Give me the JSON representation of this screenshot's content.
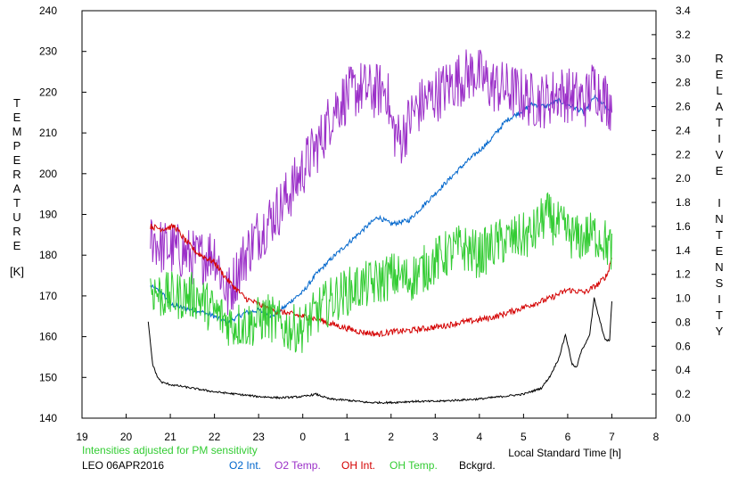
{
  "chart_data": {
    "type": "line",
    "left_axis": {
      "label": "TEMPERATURE",
      "unit": "[K]",
      "range": [
        140,
        240
      ],
      "ticks": [
        "140",
        "150",
        "160",
        "170",
        "180",
        "190",
        "200",
        "210",
        "220",
        "230",
        "240"
      ]
    },
    "right_axis": {
      "label": "RELATIVE INTENSITY",
      "range": [
        0.0,
        3.4
      ],
      "ticks": [
        "0.0",
        "0.2",
        "0.4",
        "0.6",
        "0.8",
        "1.0",
        "1.2",
        "1.4",
        "1.6",
        "1.8",
        "2.0",
        "2.2",
        "2.4",
        "2.6",
        "2.8",
        "3.0",
        "3.2",
        "3.4"
      ]
    },
    "x_axis": {
      "label": "Local Standard Time [h]",
      "range": [
        19,
        32
      ],
      "ticks": [
        "19",
        "20",
        "21",
        "22",
        "23",
        "0",
        "1",
        "2",
        "3",
        "4",
        "5",
        "6",
        "7",
        "8"
      ]
    },
    "note": "Intensities adjusted for PM sensitivity",
    "station": "LEO 06APR2016",
    "grid": false,
    "legend_position": "bottom",
    "series": [
      {
        "name": "O2 Int.",
        "color": "#0066cc",
        "axis": "right",
        "points": [
          [
            20.55,
            1.1
          ],
          [
            20.8,
            1.05
          ],
          [
            21.0,
            0.95
          ],
          [
            21.3,
            0.92
          ],
          [
            21.6,
            0.9
          ],
          [
            22.0,
            0.85
          ],
          [
            22.3,
            0.8
          ],
          [
            22.7,
            0.88
          ],
          [
            23.0,
            0.9
          ],
          [
            23.3,
            0.85
          ],
          [
            23.6,
            0.93
          ],
          [
            23.8,
            1.0
          ],
          [
            24.0,
            1.05
          ],
          [
            24.3,
            1.2
          ],
          [
            24.7,
            1.35
          ],
          [
            25.0,
            1.45
          ],
          [
            25.3,
            1.55
          ],
          [
            25.7,
            1.68
          ],
          [
            26.0,
            1.62
          ],
          [
            26.4,
            1.65
          ],
          [
            26.8,
            1.8
          ],
          [
            27.2,
            1.95
          ],
          [
            27.6,
            2.1
          ],
          [
            27.9,
            2.2
          ],
          [
            28.2,
            2.3
          ],
          [
            28.6,
            2.48
          ],
          [
            28.9,
            2.55
          ],
          [
            29.2,
            2.62
          ],
          [
            29.5,
            2.6
          ],
          [
            29.8,
            2.65
          ],
          [
            30.1,
            2.6
          ],
          [
            30.4,
            2.55
          ],
          [
            30.6,
            2.68
          ],
          [
            30.8,
            2.62
          ],
          [
            31.0,
            2.55
          ]
        ],
        "jitter": 0.02
      },
      {
        "name": "O2 Temp.",
        "color": "#9b30c8",
        "axis": "left",
        "points": [
          [
            20.55,
            185
          ],
          [
            20.8,
            182
          ],
          [
            21.2,
            181
          ],
          [
            21.6,
            179
          ],
          [
            22.0,
            181
          ],
          [
            22.3,
            170
          ],
          [
            22.6,
            178
          ],
          [
            22.9,
            184
          ],
          [
            23.2,
            188
          ],
          [
            23.5,
            192
          ],
          [
            23.8,
            197
          ],
          [
            24.1,
            203
          ],
          [
            24.4,
            208
          ],
          [
            24.7,
            216
          ],
          [
            25.0,
            219
          ],
          [
            25.3,
            221
          ],
          [
            25.6,
            220
          ],
          [
            25.9,
            221
          ],
          [
            26.0,
            212
          ],
          [
            26.2,
            208
          ],
          [
            26.5,
            215
          ],
          [
            26.8,
            218
          ],
          [
            27.1,
            220
          ],
          [
            27.5,
            223
          ],
          [
            27.9,
            225
          ],
          [
            28.2,
            222
          ],
          [
            28.5,
            221
          ],
          [
            28.8,
            220
          ],
          [
            29.2,
            218
          ],
          [
            29.5,
            218
          ],
          [
            29.8,
            220
          ],
          [
            30.1,
            219
          ],
          [
            30.4,
            218
          ],
          [
            30.6,
            222
          ],
          [
            30.8,
            219
          ],
          [
            31.0,
            217
          ]
        ],
        "jitter": 7
      },
      {
        "name": "OH Int.",
        "color": "#d40000",
        "axis": "right",
        "points": [
          [
            20.55,
            1.6
          ],
          [
            20.8,
            1.58
          ],
          [
            21.1,
            1.6
          ],
          [
            21.3,
            1.5
          ],
          [
            21.6,
            1.38
          ],
          [
            22.0,
            1.3
          ],
          [
            22.3,
            1.15
          ],
          [
            22.7,
            1.0
          ],
          [
            23.0,
            0.95
          ],
          [
            23.3,
            0.9
          ],
          [
            23.6,
            0.88
          ],
          [
            24.0,
            0.85
          ],
          [
            24.3,
            0.83
          ],
          [
            24.7,
            0.78
          ],
          [
            25.0,
            0.75
          ],
          [
            25.3,
            0.72
          ],
          [
            25.7,
            0.7
          ],
          [
            26.0,
            0.72
          ],
          [
            26.4,
            0.73
          ],
          [
            26.8,
            0.75
          ],
          [
            27.2,
            0.77
          ],
          [
            27.6,
            0.8
          ],
          [
            28.0,
            0.82
          ],
          [
            28.4,
            0.85
          ],
          [
            28.8,
            0.9
          ],
          [
            29.2,
            0.95
          ],
          [
            29.6,
            1.0
          ],
          [
            30.0,
            1.07
          ],
          [
            30.4,
            1.05
          ],
          [
            30.7,
            1.12
          ],
          [
            30.9,
            1.2
          ],
          [
            31.0,
            1.35
          ]
        ],
        "jitter": 0.025
      },
      {
        "name": "OH Temp.",
        "color": "#33cc33",
        "axis": "left",
        "points": [
          [
            20.55,
            172
          ],
          [
            20.8,
            170
          ],
          [
            21.2,
            170
          ],
          [
            21.6,
            170
          ],
          [
            22.0,
            166
          ],
          [
            22.4,
            163
          ],
          [
            22.8,
            163
          ],
          [
            23.2,
            165
          ],
          [
            23.6,
            162
          ],
          [
            24.0,
            162
          ],
          [
            24.4,
            167
          ],
          [
            24.8,
            170
          ],
          [
            25.2,
            172
          ],
          [
            25.6,
            173
          ],
          [
            26.0,
            175
          ],
          [
            26.4,
            174
          ],
          [
            26.8,
            177
          ],
          [
            27.2,
            180
          ],
          [
            27.6,
            182
          ],
          [
            28.0,
            180
          ],
          [
            28.4,
            183
          ],
          [
            28.8,
            184
          ],
          [
            29.2,
            185
          ],
          [
            29.5,
            190
          ],
          [
            29.8,
            187
          ],
          [
            30.2,
            184
          ],
          [
            30.6,
            185
          ],
          [
            30.8,
            184
          ],
          [
            31.0,
            181
          ]
        ],
        "jitter": 6
      },
      {
        "name": "Bckgrd.",
        "color": "#000000",
        "axis": "right",
        "points": [
          [
            20.5,
            0.8
          ],
          [
            20.6,
            0.45
          ],
          [
            20.7,
            0.35
          ],
          [
            20.8,
            0.3
          ],
          [
            21.0,
            0.28
          ],
          [
            21.5,
            0.25
          ],
          [
            22.0,
            0.22
          ],
          [
            22.5,
            0.2
          ],
          [
            23.0,
            0.18
          ],
          [
            23.5,
            0.17
          ],
          [
            24.0,
            0.18
          ],
          [
            24.3,
            0.2
          ],
          [
            24.6,
            0.16
          ],
          [
            25.0,
            0.15
          ],
          [
            25.5,
            0.13
          ],
          [
            26.0,
            0.13
          ],
          [
            26.5,
            0.14
          ],
          [
            27.0,
            0.14
          ],
          [
            27.5,
            0.15
          ],
          [
            28.0,
            0.16
          ],
          [
            28.5,
            0.18
          ],
          [
            29.0,
            0.2
          ],
          [
            29.4,
            0.25
          ],
          [
            29.6,
            0.35
          ],
          [
            29.8,
            0.5
          ],
          [
            29.95,
            0.7
          ],
          [
            30.1,
            0.45
          ],
          [
            30.2,
            0.42
          ],
          [
            30.3,
            0.55
          ],
          [
            30.5,
            0.7
          ],
          [
            30.6,
            1.0
          ],
          [
            30.7,
            0.85
          ],
          [
            30.85,
            0.65
          ],
          [
            30.95,
            0.65
          ],
          [
            31.0,
            0.98
          ]
        ],
        "jitter": 0.008
      }
    ]
  }
}
